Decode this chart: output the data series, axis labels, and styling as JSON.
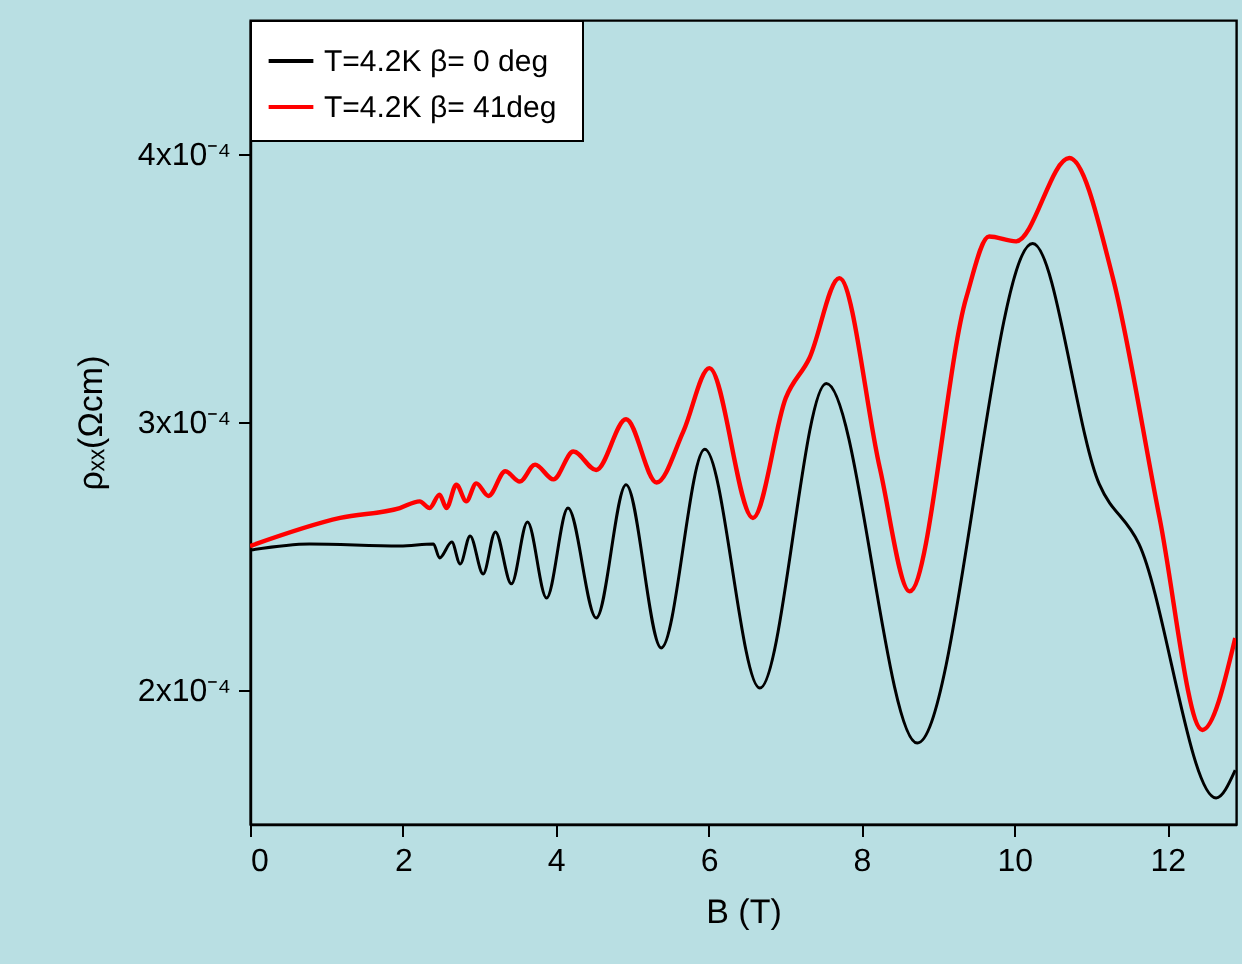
{
  "chart_data": {
    "type": "line",
    "xlabel": "B (T)",
    "ylabel": "ρₓₓ(Ωcm)",
    "xlim": [
      0,
      12.9
    ],
    "xticks": [
      0,
      2,
      4,
      6,
      8,
      10,
      12
    ],
    "ylim": [
      0.00015,
      0.00045
    ],
    "yticks": [
      {
        "value": 0.0002,
        "label": "2x10⁻⁴"
      },
      {
        "value": 0.0003,
        "label": "3x10⁻⁴"
      },
      {
        "value": 0.0004,
        "label": "4x10⁻⁴"
      }
    ],
    "grid": false,
    "legend": "top left",
    "series": [
      {
        "name": "T=4.2K  β= 0 deg",
        "color": "#000000",
        "x": [
          0,
          0.78,
          1.96,
          2.4,
          2.48,
          2.64,
          2.75,
          2.88,
          3.05,
          3.21,
          3.42,
          3.63,
          3.88,
          4.16,
          4.53,
          4.92,
          5.38,
          5.95,
          6.67,
          7.54,
          8.73,
          10.24,
          11.11,
          11.63,
          12.64,
          12.89
        ],
        "values": [
          0.0002522,
          0.0002545,
          0.0002537,
          0.0002545,
          0.0002493,
          0.0002552,
          0.000247,
          0.0002575,
          0.0002433,
          0.000259,
          0.0002396,
          0.0002627,
          0.0002343,
          0.0002679,
          0.0002269,
          0.0002766,
          0.0002157,
          0.0002898,
          0.0002007,
          0.0003144,
          0.0001802,
          0.0003666,
          0.0002769,
          0.0002545,
          0.0001597,
          0.0001701
        ]
      },
      {
        "name": "T=4.2K  β= 41deg",
        "color": "#ff0000",
        "x": [
          0,
          1.18,
          1.96,
          2.22,
          2.35,
          2.48,
          2.57,
          2.7,
          2.83,
          2.96,
          3.12,
          3.34,
          3.53,
          3.73,
          3.97,
          4.23,
          4.53,
          4.92,
          5.32,
          5.67,
          6.01,
          6.58,
          7.01,
          7.32,
          7.71,
          8.24,
          8.63,
          9.37,
          9.67,
          10.02,
          10.72,
          11.29,
          11.9,
          12.46,
          12.89
        ],
        "values": [
          0.0002537,
          0.0002642,
          0.0002679,
          0.0002704,
          0.0002679,
          0.0002729,
          0.0002679,
          0.0002766,
          0.0002704,
          0.0002771,
          0.0002724,
          0.0002816,
          0.0002778,
          0.0002841,
          0.0002786,
          0.000289,
          0.0002821,
          0.000301,
          0.0002774,
          0.0002965,
          0.0003201,
          0.0002642,
          0.000309,
          0.0003239,
          0.0003537,
          0.0002828,
          0.0002368,
          0.0003463,
          0.0003692,
          0.0003674,
          0.0003985,
          0.0003537,
          0.0002642,
          0.0001851,
          0.0002194
        ]
      }
    ]
  }
}
